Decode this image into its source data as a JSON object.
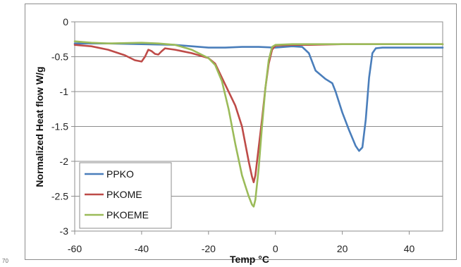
{
  "chart_data": {
    "type": "line",
    "title": "",
    "xlabel": "Temp °C",
    "ylabel": "Normalized Heat flow W/g",
    "xlim": [
      -60,
      50
    ],
    "ylim": [
      -3,
      0
    ],
    "x_ticks": [
      -60,
      -40,
      -20,
      0,
      20,
      40
    ],
    "y_ticks": [
      0,
      -0.5,
      -1,
      -1.5,
      -2,
      -2.5,
      -3
    ],
    "x_tick_labels": [
      "-60",
      "-40",
      "-20",
      "0",
      "20",
      "40"
    ],
    "y_tick_labels": [
      "0",
      "-0.5",
      "-1",
      "-1.5",
      "-2",
      "-2.5",
      "-3"
    ],
    "grid": "horizontal",
    "legend_position": "bottom-left",
    "series": [
      {
        "name": "PPKO",
        "color": "#4a7ebb",
        "x": [
          -60,
          -50,
          -40,
          -30,
          -25,
          -20,
          -15,
          -10,
          -5,
          0,
          5,
          8,
          10,
          12,
          15,
          17,
          18,
          20,
          22,
          24,
          25,
          26,
          27,
          28,
          29,
          30,
          32,
          35,
          40,
          50
        ],
        "y": [
          -0.31,
          -0.31,
          -0.32,
          -0.33,
          -0.35,
          -0.37,
          -0.37,
          -0.36,
          -0.36,
          -0.37,
          -0.35,
          -0.36,
          -0.45,
          -0.7,
          -0.82,
          -0.88,
          -1.0,
          -1.3,
          -1.55,
          -1.78,
          -1.85,
          -1.8,
          -1.4,
          -0.8,
          -0.45,
          -0.38,
          -0.37,
          -0.37,
          -0.37,
          -0.37
        ]
      },
      {
        "name": "PKOME",
        "color": "#be4b48",
        "x": [
          -60,
          -55,
          -50,
          -45,
          -42,
          -40,
          -39,
          -38,
          -37,
          -36,
          -35,
          -34,
          -33,
          -30,
          -25,
          -20,
          -18,
          -15,
          -12,
          -10,
          -8,
          -7,
          -6.5,
          -6,
          -5,
          -4,
          -3,
          -2,
          -1,
          0,
          5,
          10,
          20,
          30,
          50
        ],
        "y": [
          -0.33,
          -0.35,
          -0.4,
          -0.48,
          -0.55,
          -0.57,
          -0.5,
          -0.4,
          -0.42,
          -0.46,
          -0.47,
          -0.42,
          -0.38,
          -0.4,
          -0.45,
          -0.52,
          -0.6,
          -0.9,
          -1.2,
          -1.5,
          -2.0,
          -2.22,
          -2.3,
          -2.2,
          -1.8,
          -1.4,
          -0.95,
          -0.6,
          -0.4,
          -0.34,
          -0.33,
          -0.33,
          -0.32,
          -0.32,
          -0.32
        ]
      },
      {
        "name": "PKOEME",
        "color": "#9bbb59",
        "x": [
          -60,
          -55,
          -50,
          -40,
          -35,
          -30,
          -25,
          -20,
          -18,
          -16,
          -14,
          -12,
          -10,
          -9,
          -8,
          -7,
          -6.5,
          -6,
          -5,
          -4,
          -3,
          -2,
          -1,
          0,
          5,
          10,
          20,
          30,
          50
        ],
        "y": [
          -0.28,
          -0.3,
          -0.31,
          -0.3,
          -0.31,
          -0.33,
          -0.4,
          -0.52,
          -0.62,
          -0.85,
          -1.25,
          -1.75,
          -2.2,
          -2.35,
          -2.5,
          -2.62,
          -2.65,
          -2.55,
          -2.1,
          -1.5,
          -0.95,
          -0.55,
          -0.36,
          -0.33,
          -0.32,
          -0.32,
          -0.32,
          -0.32,
          -0.32
        ]
      }
    ]
  },
  "stray_mark": "70"
}
